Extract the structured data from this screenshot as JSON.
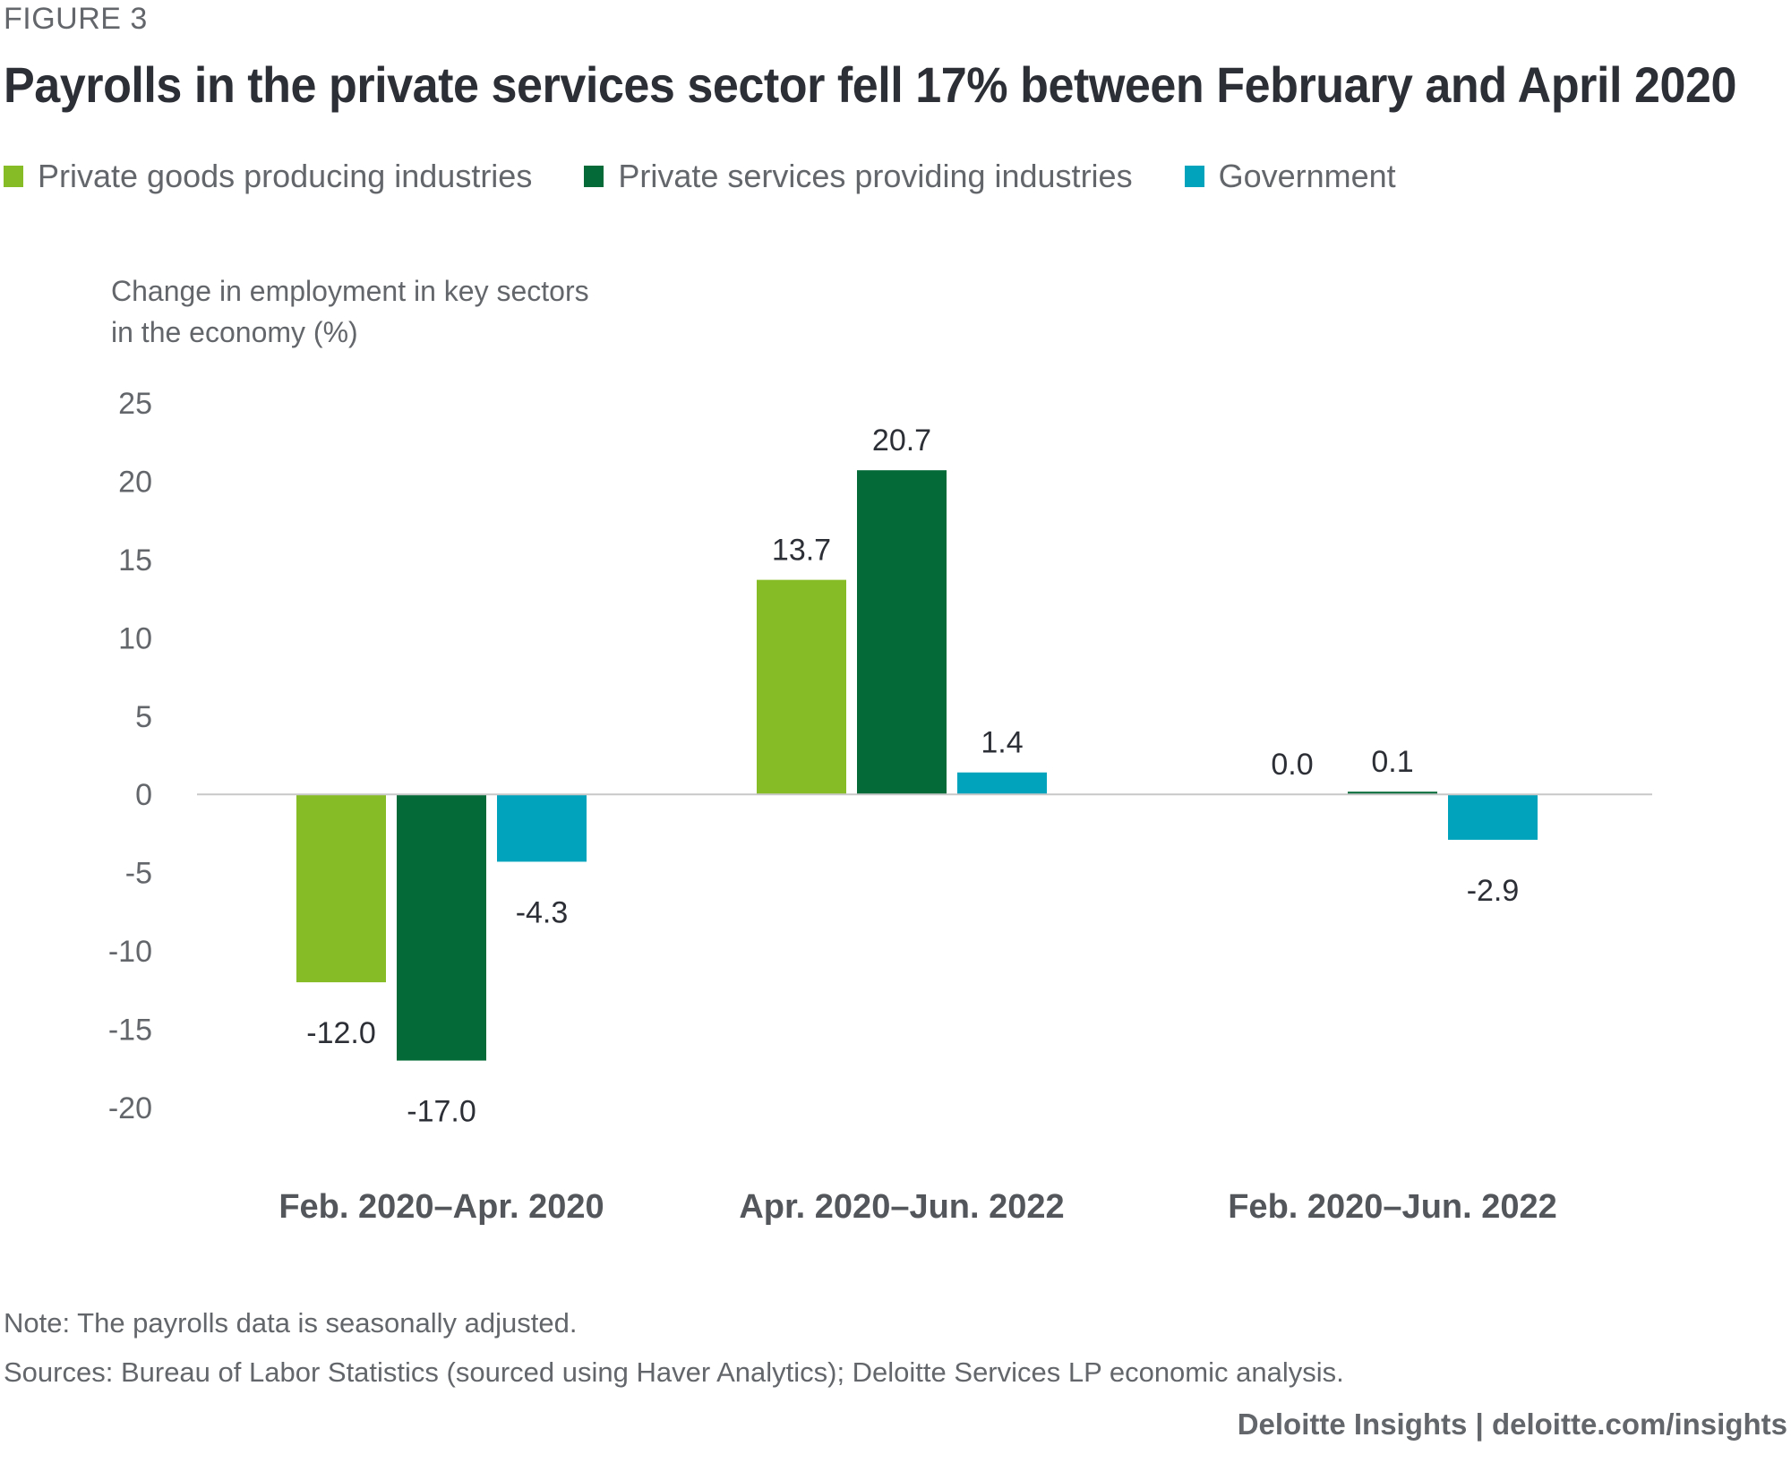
{
  "figure_label": "FIGURE 3",
  "title": "Payrolls in the private services sector fell 17% between February and April 2020",
  "note": "Note: The payrolls data is seasonally adjusted.",
  "sources": "Sources: Bureau of Labor Statistics (sourced using Haver Analytics); Deloitte Services LP economic analysis.",
  "credit": "Deloitte Insights | deloitte.com/insights",
  "chart_data": {
    "type": "bar",
    "title": "Payrolls in the private services sector fell 17% between February and April 2020",
    "ylabel_lines": [
      "Change in employment in key sectors",
      "in the economy (%)"
    ],
    "xlabel": "",
    "categories": [
      "Feb. 2020–Apr. 2020",
      "Apr. 2020–Jun. 2022",
      "Feb. 2020–Jun. 2022"
    ],
    "series": [
      {
        "name": "Private goods producing industries",
        "color": "#86bc25",
        "values": [
          -12.0,
          13.7,
          0.0
        ],
        "labels": [
          "-12.0",
          "13.7",
          "0.0"
        ]
      },
      {
        "name": "Private services providing industries",
        "color": "#046a38",
        "values": [
          -17.0,
          20.7,
          0.1
        ],
        "labels": [
          "-17.0",
          "20.7",
          "0.1"
        ]
      },
      {
        "name": "Government",
        "color": "#00a3bb",
        "values": [
          -4.3,
          1.4,
          -2.9
        ],
        "labels": [
          "-4.3",
          "1.4",
          "-2.9"
        ]
      }
    ],
    "ylim": [
      -20,
      25
    ],
    "yticks": [
      25,
      20,
      15,
      10,
      5,
      0,
      -5,
      -10,
      -15,
      -20
    ],
    "ytick_labels": [
      "25",
      "20",
      "15",
      "10",
      "5",
      "0",
      "-5",
      "-10",
      "-15",
      "-20"
    ],
    "grid": false,
    "zero_line": true,
    "legend_position": "top-left"
  }
}
